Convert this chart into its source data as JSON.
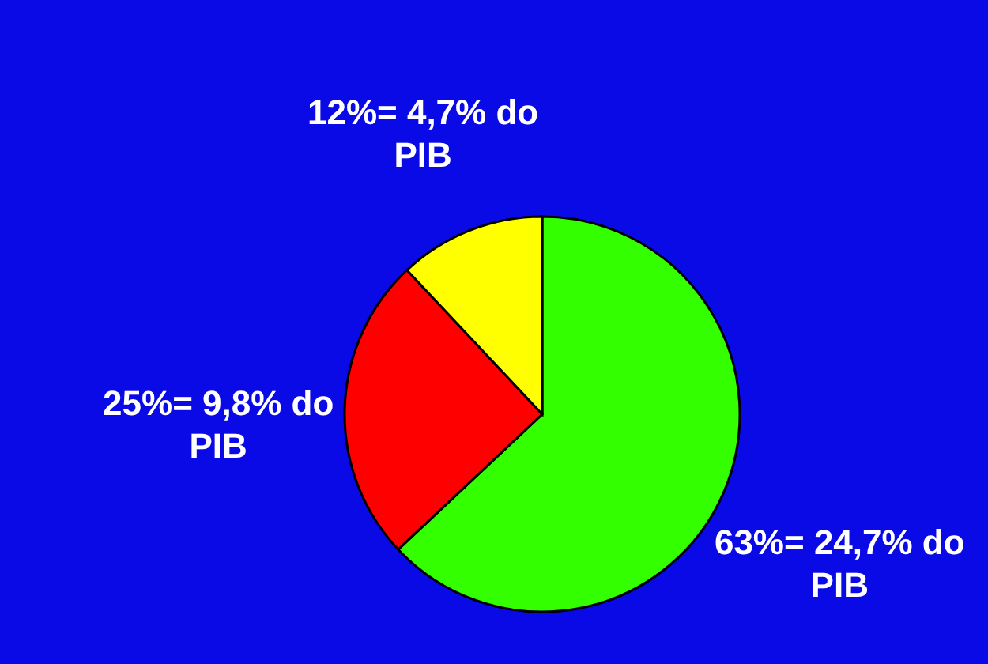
{
  "chart_data": {
    "type": "pie",
    "categories": [
      "63%= 24,7% do PIB",
      "25%= 9,8% do PIB",
      "12%= 4,7% do PIB"
    ],
    "values": [
      63,
      25,
      12
    ],
    "colors": [
      "#33ff00",
      "#ff0000",
      "#ffff00"
    ]
  }
}
